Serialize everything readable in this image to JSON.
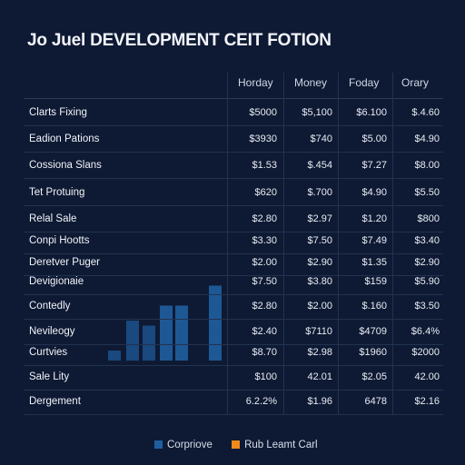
{
  "title": "Jo Juel DEVELOPMENT CEIT FOTION",
  "columns": [
    "Horday",
    "Money",
    "Foday",
    "Orary"
  ],
  "rows": [
    {
      "label": "Clarts Fixing",
      "cells": [
        "$5000",
        "$5,100",
        "$6.100",
        "$.4.60"
      ]
    },
    {
      "label": "Eadion Pations",
      "cells": [
        "$3930",
        "$740",
        "$5.00",
        "$4.90"
      ]
    },
    {
      "label": "Cossiona Slans",
      "cells": [
        "$1.53",
        "$.454",
        "$7.27",
        "$8.00"
      ]
    },
    {
      "label": "Tet Protuing",
      "cells": [
        "$620",
        "$.700",
        "$4.90",
        "$5.50"
      ]
    },
    {
      "label": "Relal Sale",
      "cells": [
        "$2.80",
        "$2.97",
        "$1.20",
        "$800"
      ]
    },
    {
      "label": "Conpi Hootts",
      "cells": [
        "$3.30",
        "$7.50",
        "$7.49",
        "$3.40"
      ]
    },
    {
      "label": "Deretver Puger",
      "cells": [
        "$2.00",
        "$2.90",
        "$1.35",
        "$2.90"
      ]
    },
    {
      "label": "Devigionaie",
      "cells": [
        "$7.50",
        "$3.80",
        "$159",
        "$5.90"
      ]
    },
    {
      "label": "Contedly",
      "cells": [
        "$2.80",
        "$2.00",
        "$.160",
        "$3.50"
      ]
    },
    {
      "label": "Nevileogy",
      "cells": [
        "$2.40",
        "$7110",
        "$4709",
        "$6.4%"
      ]
    },
    {
      "label": "Curtvies",
      "cells": [
        "$8.70",
        "$2.98",
        "$1960",
        "$2000"
      ]
    },
    {
      "label": "Sale Lity",
      "cells": [
        "$100",
        "42.01",
        "$2.05",
        "42.00"
      ]
    },
    {
      "label": "Dergement",
      "cells": [
        "6.2.2%",
        "$1.96",
        "6478",
        "$2.16"
      ]
    }
  ],
  "chart_data": {
    "type": "bar",
    "values": [
      1,
      4,
      3.5,
      5.5,
      5.5,
      7.5
    ],
    "series": [
      {
        "name": "Corpriove",
        "color": "#1f5fa0"
      },
      {
        "name": "Rub Leamt Carl",
        "color": "#f08a1c"
      }
    ]
  },
  "colors": {
    "background": "#0e1a33",
    "bar": "#1b4f86",
    "bar_highlight": "#1f5fa0",
    "accent": "#f08a1c"
  },
  "legend": {
    "item1": "Corpriove",
    "item2": "Rub Leamt Carl"
  }
}
